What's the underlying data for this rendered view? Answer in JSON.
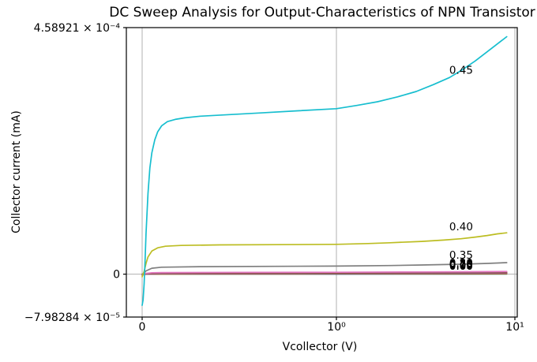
{
  "figure": {
    "background": "#ffffff"
  },
  "chart_data": {
    "type": "line",
    "title": "DC Sweep Analysis for Output-Characteristics of NPN Transistor",
    "xlabel": "Vcollector (V)",
    "ylabel": "Collector current (mA)",
    "xscale": "symlog",
    "xlim": [
      -0.081,
      10.31
    ],
    "ylim": [
      -7.98284e-05,
      0.000458921
    ],
    "grid": true,
    "grid_color": "#b0b0b0",
    "spine_color": "#000000",
    "x_ticks": [
      {
        "label": "0",
        "value": 0
      },
      {
        "label": "10⁰",
        "value": 1
      },
      {
        "label": "10¹",
        "value": 10
      }
    ],
    "y_ticks": [
      {
        "label": "4.58921 × 10⁻⁴",
        "value": 0.000458921
      },
      {
        "label": "0",
        "value": 0
      },
      {
        "label": "−7.98284 × 10⁻⁵",
        "value": -7.98284e-05
      }
    ],
    "series": [
      {
        "label": "0.00",
        "color": "#1f77b4",
        "points": [
          [
            0,
            0
          ],
          [
            0.1,
            0
          ],
          [
            1,
            1e-07
          ],
          [
            5,
            2e-07
          ],
          [
            9,
            3e-07
          ]
        ]
      },
      {
        "label": "0.05",
        "color": "#ff7f0e",
        "points": [
          [
            0,
            0
          ],
          [
            0.1,
            2e-07
          ],
          [
            1,
            4e-07
          ],
          [
            5,
            5e-07
          ],
          [
            9,
            6e-07
          ]
        ]
      },
      {
        "label": "0.10",
        "color": "#2ca02c",
        "points": [
          [
            0,
            0
          ],
          [
            0.1,
            4e-07
          ],
          [
            1,
            7e-07
          ],
          [
            5,
            9e-07
          ],
          [
            9,
            1.1e-06
          ]
        ]
      },
      {
        "label": "0.15",
        "color": "#d62728",
        "points": [
          [
            0,
            -2e-07
          ],
          [
            0.1,
            6e-07
          ],
          [
            1,
            1.1e-06
          ],
          [
            5,
            1.4e-06
          ],
          [
            9,
            1.7e-06
          ]
        ]
      },
      {
        "label": "0.20",
        "color": "#9467bd",
        "points": [
          [
            0,
            -4e-07
          ],
          [
            0.1,
            9e-07
          ],
          [
            1,
            1.6e-06
          ],
          [
            5,
            2e-06
          ],
          [
            9,
            2.4e-06
          ]
        ]
      },
      {
        "label": "0.25",
        "color": "#8c564b",
        "points": [
          [
            0,
            -6e-07
          ],
          [
            0.05,
            8e-07
          ],
          [
            0.1,
            1.3e-06
          ],
          [
            1,
            2.2e-06
          ],
          [
            5,
            2.8e-06
          ],
          [
            9,
            3.2e-06
          ]
        ]
      },
      {
        "label": "0.30",
        "color": "#e377c2",
        "points": [
          [
            0,
            -1e-06
          ],
          [
            0.01,
            5e-07
          ],
          [
            0.02,
            1.5e-06
          ],
          [
            0.05,
            2.5e-06
          ],
          [
            0.1,
            3e-06
          ],
          [
            0.5,
            3.4e-06
          ],
          [
            1,
            3.6e-06
          ],
          [
            3,
            4.1e-06
          ],
          [
            6,
            4.6e-06
          ],
          [
            9,
            5e-06
          ]
        ]
      },
      {
        "label": "0.35",
        "color": "#7f7f7f",
        "points": [
          [
            0,
            -2e-06
          ],
          [
            0.01,
            2e-06
          ],
          [
            0.02,
            6e-06
          ],
          [
            0.05,
            1.1e-05
          ],
          [
            0.1,
            1.3e-05
          ],
          [
            0.3,
            1.4e-05
          ],
          [
            1,
            1.5e-05
          ],
          [
            2,
            1.6e-05
          ],
          [
            3,
            1.7e-05
          ],
          [
            5,
            1.85e-05
          ],
          [
            7,
            2e-05
          ],
          [
            9,
            2.15e-05
          ]
        ]
      },
      {
        "label": "0.40",
        "color": "#bcbd22",
        "points": [
          [
            0,
            -5e-06
          ],
          [
            0.01,
            5e-06
          ],
          [
            0.02,
            2e-05
          ],
          [
            0.03,
            3.2e-05
          ],
          [
            0.05,
            4.3e-05
          ],
          [
            0.08,
            4.9e-05
          ],
          [
            0.12,
            5.2e-05
          ],
          [
            0.2,
            5.35e-05
          ],
          [
            0.4,
            5.45e-05
          ],
          [
            0.7,
            5.5e-05
          ],
          [
            1,
            5.55e-05
          ],
          [
            1.5,
            5.7e-05
          ],
          [
            2,
            5.85e-05
          ],
          [
            3,
            6.1e-05
          ],
          [
            4,
            6.35e-05
          ],
          [
            5,
            6.6e-05
          ],
          [
            6,
            6.9e-05
          ],
          [
            7,
            7.2e-05
          ],
          [
            8,
            7.5e-05
          ],
          [
            9,
            7.7e-05
          ]
        ]
      },
      {
        "label": "0.45",
        "color": "#17becf",
        "points": [
          [
            0,
            -5.8e-05
          ],
          [
            0.005,
            -4.8e-05
          ],
          [
            0.01,
            -1.8e-05
          ],
          [
            0.015,
            2.5e-05
          ],
          [
            0.02,
            7.5e-05
          ],
          [
            0.03,
            0.00015
          ],
          [
            0.04,
            0.000198
          ],
          [
            0.05,
            0.000226
          ],
          [
            0.065,
            0.00025
          ],
          [
            0.08,
            0.000265
          ],
          [
            0.1,
            0.000276
          ],
          [
            0.13,
            0.000284
          ],
          [
            0.17,
            0.000288
          ],
          [
            0.22,
            0.000291
          ],
          [
            0.3,
            0.000294
          ],
          [
            0.45,
            0.000297
          ],
          [
            0.6,
            0.0003
          ],
          [
            0.8,
            0.000304
          ],
          [
            1,
            0.000308
          ],
          [
            1.3,
            0.000314
          ],
          [
            1.7,
            0.000321
          ],
          [
            2.2,
            0.00033
          ],
          [
            2.8,
            0.00034
          ],
          [
            3.5,
            0.000353
          ],
          [
            4.3,
            0.000366
          ],
          [
            5,
            0.000379
          ],
          [
            6,
            0.000397
          ],
          [
            7,
            0.000414
          ],
          [
            8,
            0.000429
          ],
          [
            9,
            0.000442
          ]
        ]
      }
    ],
    "annotations": [
      {
        "text": "0.45",
        "x": 5.0,
        "y": 0.00038
      },
      {
        "text": "0.40",
        "x": 5.0,
        "y": 8.8e-05
      },
      {
        "text": "0.35",
        "x": 5.0,
        "y": 3.55e-05
      },
      {
        "text": "0.30",
        "x": 5.0,
        "y": 2.05e-05
      },
      {
        "text": "0.25",
        "x": 5.0,
        "y": 1.95e-05
      },
      {
        "text": "0.20",
        "x": 5.0,
        "y": 1.85e-05
      },
      {
        "text": "0.15",
        "x": 5.0,
        "y": 1.75e-05
      },
      {
        "text": "0.10",
        "x": 5.0,
        "y": 1.68e-05
      },
      {
        "text": "0.05",
        "x": 5.0,
        "y": 1.6e-05
      },
      {
        "text": "0.00",
        "x": 5.0,
        "y": 1.52e-05
      }
    ]
  }
}
